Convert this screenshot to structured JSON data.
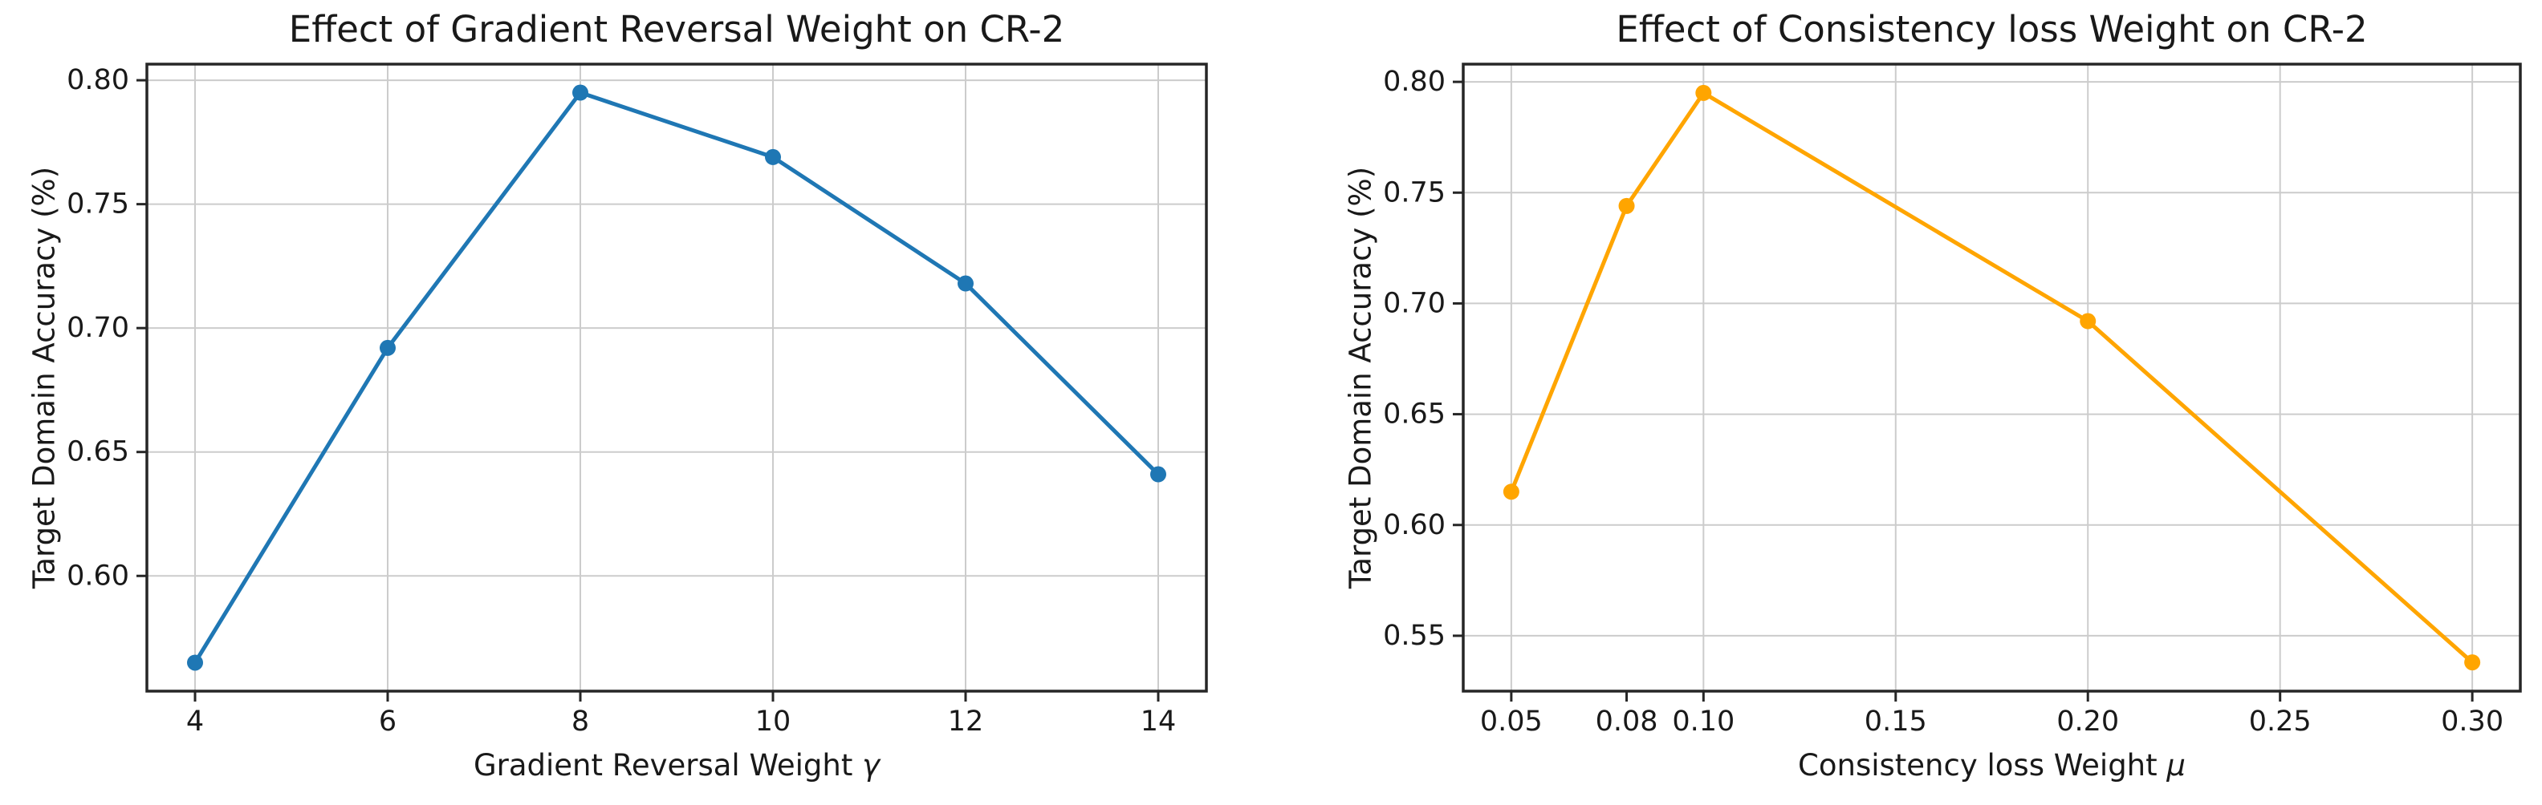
{
  "figure": {
    "background": "#ffffff",
    "text_color": "#191919"
  },
  "chart_data": [
    {
      "type": "line",
      "title": "Effect of Gradient Reversal Weight on CR-2",
      "xlabel": "Gradient Reversal Weight ",
      "xlabel_symbol": "γ",
      "ylabel": "Target Domain Accuracy (%)",
      "x": [
        4,
        6,
        8,
        10,
        12,
        14
      ],
      "y": [
        0.565,
        0.692,
        0.795,
        0.769,
        0.718,
        0.641
      ],
      "color": "#1f77b4",
      "marker": "circle",
      "xlim": [
        3.5,
        14.5
      ],
      "ylim": [
        0.5535,
        0.8065
      ],
      "xticks": [
        4,
        6,
        8,
        10,
        12,
        14
      ],
      "xtick_labels": [
        "4",
        "6",
        "8",
        "10",
        "12",
        "14"
      ],
      "xgrid": [
        4,
        6,
        8,
        10,
        12,
        14
      ],
      "yticks": [
        0.6,
        0.65,
        0.7,
        0.75,
        0.8
      ],
      "ytick_labels": [
        "0.60",
        "0.65",
        "0.70",
        "0.75",
        "0.80"
      ],
      "grid": true,
      "legend": null
    },
    {
      "type": "line",
      "title": "Effect of Consistency loss Weight on CR-2",
      "xlabel": "Consistency loss Weight ",
      "xlabel_symbol": "μ",
      "ylabel": "Target Domain Accuracy (%)",
      "x": [
        0.05,
        0.08,
        0.1,
        0.2,
        0.3
      ],
      "y": [
        0.615,
        0.744,
        0.795,
        0.692,
        0.538
      ],
      "color": "#ffa500",
      "marker": "circle",
      "xlim": [
        0.0375,
        0.3125
      ],
      "ylim": [
        0.525,
        0.808
      ],
      "xticks": [
        0.05,
        0.08,
        0.1,
        0.15,
        0.2,
        0.25,
        0.3
      ],
      "xtick_labels": [
        "0.05",
        "0.08",
        "0.10",
        "0.15",
        "0.20",
        "0.25",
        "0.30"
      ],
      "xgrid": [
        0.05,
        0.1,
        0.15,
        0.2,
        0.25,
        0.3
      ],
      "yticks": [
        0.55,
        0.6,
        0.65,
        0.7,
        0.75,
        0.8
      ],
      "ytick_labels": [
        "0.55",
        "0.60",
        "0.65",
        "0.70",
        "0.75",
        "0.80"
      ],
      "grid": true,
      "legend": null
    }
  ]
}
